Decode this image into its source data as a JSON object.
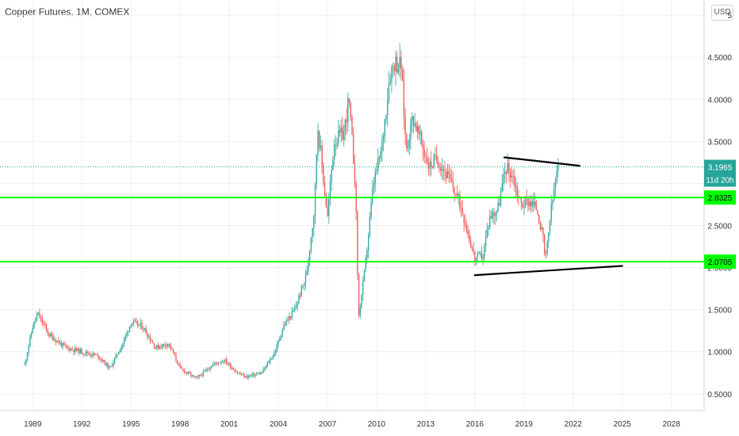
{
  "header": {
    "title": "Copper Futures, 1M, COMEX",
    "currency": "USD"
  },
  "colors": {
    "up": "#26a69a",
    "down": "#ef5350",
    "level_line": "#00ff00",
    "trend_line": "#000000",
    "price_tag": "#26a69a",
    "level_tag": "#00ff00",
    "grid": "#eef0f3"
  },
  "chart_data": {
    "type": "candlestick",
    "title": "Copper Futures, 1M, COMEX",
    "x_axis": {
      "labels": [
        "1989",
        "1992",
        "1995",
        "1998",
        "2001",
        "2004",
        "2007",
        "2010",
        "2013",
        "2016",
        "2019",
        "2022",
        "2025",
        "2028"
      ],
      "range": [
        1987,
        2030
      ]
    },
    "y_axis": {
      "labels": [
        "0.5000",
        "1.0000",
        "1.5000",
        "2.0000",
        "2.5000",
        "3.0000",
        "3.5000",
        "4.0000",
        "4.5000",
        "5"
      ],
      "range": [
        0.3,
        5.18
      ]
    },
    "approx_close_path": [
      [
        1988.5,
        0.85
      ],
      [
        1989.0,
        1.3
      ],
      [
        1989.3,
        1.45
      ],
      [
        1990.0,
        1.2
      ],
      [
        1991.0,
        1.05
      ],
      [
        1992.0,
        1.0
      ],
      [
        1993.0,
        0.95
      ],
      [
        1993.7,
        0.8
      ],
      [
        1994.5,
        1.1
      ],
      [
        1995.0,
        1.35
      ],
      [
        1995.7,
        1.3
      ],
      [
        1996.5,
        1.05
      ],
      [
        1997.3,
        1.1
      ],
      [
        1998.0,
        0.8
      ],
      [
        1999.0,
        0.68
      ],
      [
        2000.0,
        0.85
      ],
      [
        2000.7,
        0.9
      ],
      [
        2001.5,
        0.75
      ],
      [
        2002.0,
        0.7
      ],
      [
        2003.0,
        0.75
      ],
      [
        2003.8,
        1.0
      ],
      [
        2004.3,
        1.3
      ],
      [
        2005.0,
        1.5
      ],
      [
        2005.7,
        1.9
      ],
      [
        2006.2,
        2.7
      ],
      [
        2006.4,
        3.7
      ],
      [
        2007.0,
        2.6
      ],
      [
        2007.4,
        3.5
      ],
      [
        2008.0,
        3.6
      ],
      [
        2008.3,
        4.0
      ],
      [
        2008.7,
        3.0
      ],
      [
        2008.9,
        1.4
      ],
      [
        2009.3,
        2.0
      ],
      [
        2009.8,
        3.0
      ],
      [
        2010.3,
        3.4
      ],
      [
        2010.8,
        4.3
      ],
      [
        2011.1,
        4.45
      ],
      [
        2011.5,
        4.4
      ],
      [
        2011.8,
        3.4
      ],
      [
        2012.2,
        3.8
      ],
      [
        2012.7,
        3.5
      ],
      [
        2013.2,
        3.2
      ],
      [
        2013.7,
        3.3
      ],
      [
        2014.3,
        3.1
      ],
      [
        2014.8,
        2.9
      ],
      [
        2015.2,
        2.7
      ],
      [
        2015.6,
        2.4
      ],
      [
        2016.0,
        2.1
      ],
      [
        2016.5,
        2.15
      ],
      [
        2016.9,
        2.6
      ],
      [
        2017.4,
        2.7
      ],
      [
        2017.9,
        3.2
      ],
      [
        2018.3,
        3.1
      ],
      [
        2018.8,
        2.75
      ],
      [
        2019.3,
        2.8
      ],
      [
        2019.8,
        2.7
      ],
      [
        2020.2,
        2.3
      ],
      [
        2020.3,
        2.05
      ],
      [
        2020.6,
        2.6
      ],
      [
        2020.9,
        3.0
      ],
      [
        2021.1,
        3.2
      ]
    ],
    "horizontal_levels": [
      {
        "value": 2.8325,
        "label": "2.8325"
      },
      {
        "value": 2.0705,
        "label": "2.0705"
      }
    ],
    "last_price": {
      "value": 3.1965,
      "label": "3.1965",
      "countdown": "11d 20h"
    },
    "trend_lines": [
      {
        "points": [
          [
            2017.8,
            3.31
          ],
          [
            2022.4,
            3.21
          ]
        ]
      },
      {
        "points": [
          [
            2016.0,
            1.91
          ],
          [
            2025.0,
            2.02
          ]
        ]
      }
    ]
  }
}
